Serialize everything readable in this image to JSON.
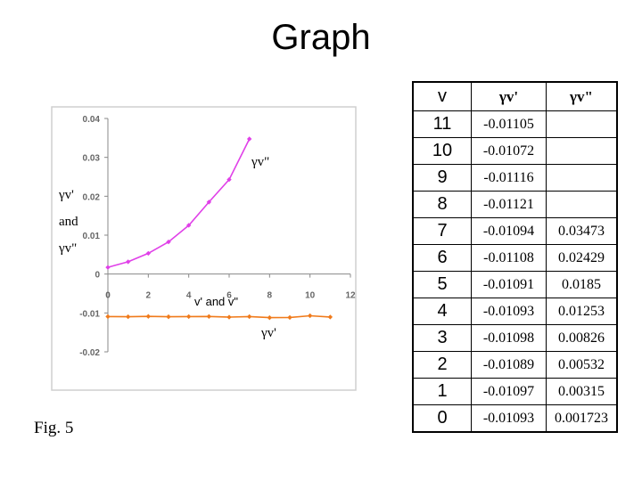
{
  "title": "Graph",
  "figure_caption": "Fig. 5",
  "chart_data": {
    "type": "line",
    "title": "",
    "xlabel": "v' and v\"",
    "ylabel_lines": [
      "γv'",
      "and",
      "γv\""
    ],
    "xlim": [
      0,
      12
    ],
    "ylim": [
      -0.02,
      0.04
    ],
    "x_ticks": [
      0,
      2,
      4,
      6,
      8,
      10,
      12
    ],
    "x_tick_labels": [
      "0",
      "2",
      "4",
      "6",
      "8",
      "10",
      "12"
    ],
    "y_ticks": [
      0.04,
      0.03,
      0.02,
      0.01,
      0,
      -0.01,
      -0.02
    ],
    "y_tick_labels": [
      "0.04",
      "0.03",
      "0.02",
      "0.01",
      "0",
      "-0.01",
      "-0.02"
    ],
    "grid": false,
    "series": [
      {
        "name": "γv\"",
        "color": "#e040e8",
        "x": [
          0,
          1,
          2,
          3,
          4,
          5,
          6,
          7
        ],
        "values": [
          0.001723,
          0.00315,
          0.00532,
          0.00826,
          0.01253,
          0.0185,
          0.02429,
          0.03473
        ]
      },
      {
        "name": "γv'",
        "color": "#f07a1a",
        "x": [
          0,
          1,
          2,
          3,
          4,
          5,
          6,
          7,
          8,
          9,
          10,
          11
        ],
        "values": [
          -0.01093,
          -0.01097,
          -0.01089,
          -0.01098,
          -0.01093,
          -0.01091,
          -0.01108,
          -0.01094,
          -0.01121,
          -0.01116,
          -0.01072,
          -0.01105
        ]
      }
    ]
  },
  "table": {
    "headers": [
      "v",
      "γv'",
      "γv\""
    ],
    "rows": [
      [
        "11",
        "-0.01105",
        ""
      ],
      [
        "10",
        "-0.01072",
        ""
      ],
      [
        "9",
        "-0.01116",
        ""
      ],
      [
        "8",
        "-0.01121",
        ""
      ],
      [
        "7",
        "-0.01094",
        "0.03473"
      ],
      [
        "6",
        "-0.01108",
        "0.02429"
      ],
      [
        "5",
        "-0.01091",
        "0.0185"
      ],
      [
        "4",
        "-0.01093",
        "0.01253"
      ],
      [
        "3",
        "-0.01098",
        "0.00826"
      ],
      [
        "2",
        "-0.01089",
        "0.00532"
      ],
      [
        "1",
        "-0.01097",
        "0.00315"
      ],
      [
        "0",
        "-0.01093",
        "0.001723"
      ]
    ]
  }
}
